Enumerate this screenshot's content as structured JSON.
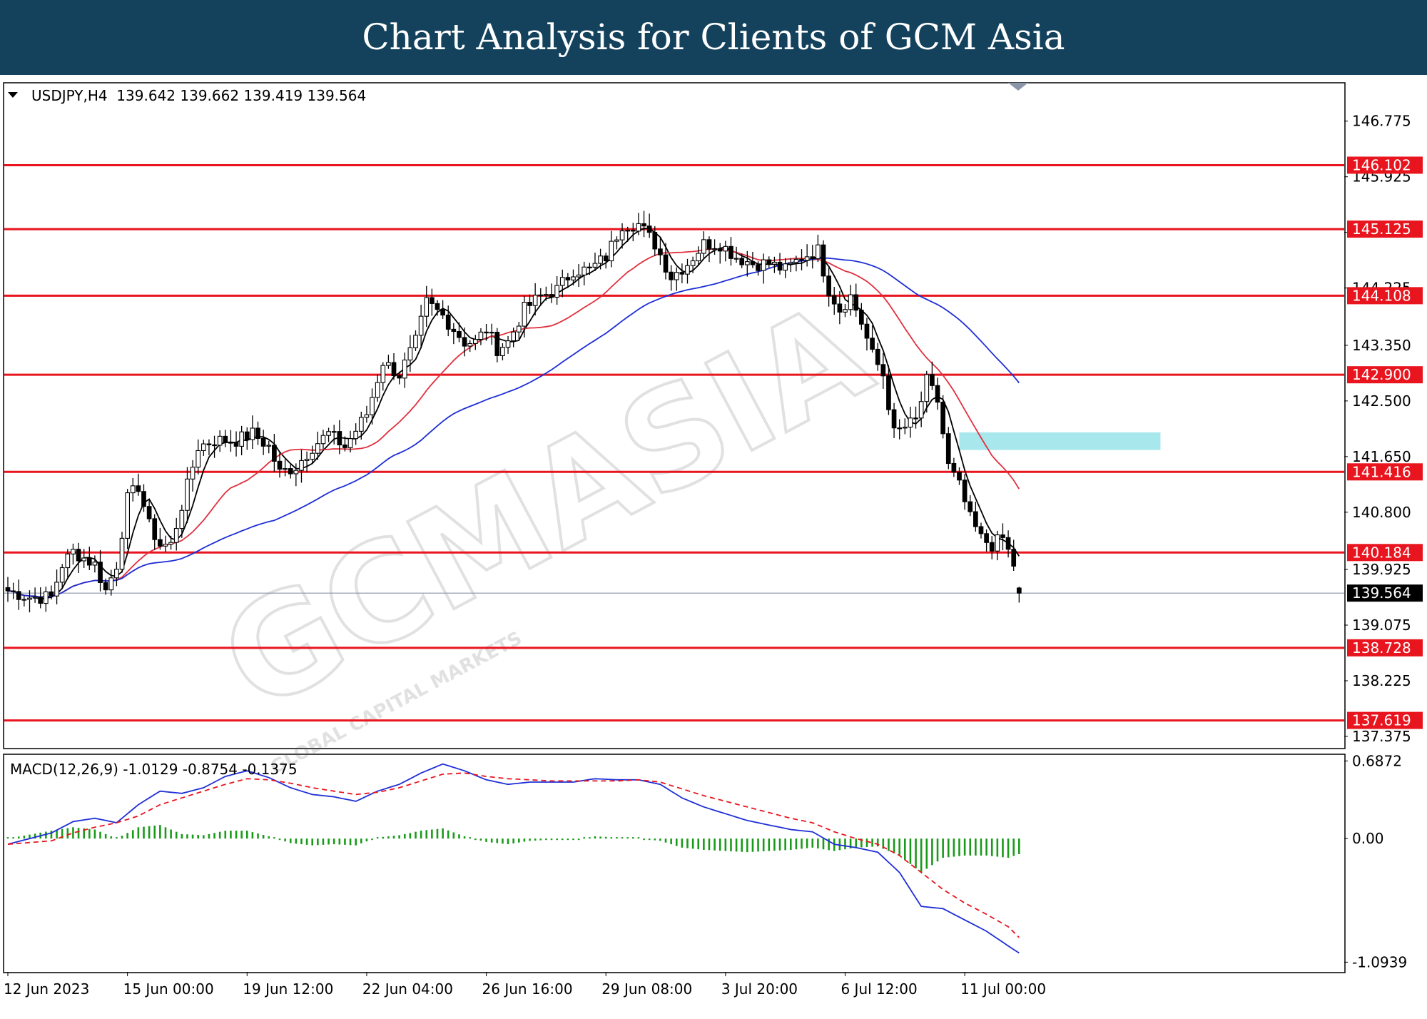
{
  "banner": {
    "title": "Chart Analysis for Clients of GCM Asia"
  },
  "colors": {
    "banner_bg": "#14425d",
    "support_resistance": "#e8141e",
    "ma_fast": "#000000",
    "ma_mid": "#e0303e",
    "ma_slow": "#1e2ed6",
    "macd_line": "#1e2ed6",
    "signal_line": "#e8141e",
    "histogram": "#1a9a1a",
    "zone": "#a8e8ec",
    "price_line": "#8a96a8"
  },
  "watermark": {
    "text": "GCMASIA",
    "subtext": "GLOBAL CAPITAL MARKETS"
  },
  "chart_data": [
    {
      "type": "candlestick",
      "symbol": "USDJPY,H4",
      "header": "USDJPY,H4  139.642 139.662 139.419 139.564",
      "ohlc_last": {
        "open": 139.642,
        "high": 139.662,
        "low": 139.419,
        "close": 139.564
      },
      "current_price": 139.564,
      "current_price_label": "139.564",
      "ylim": [
        137.2,
        147.35
      ],
      "y_ticks": [
        {
          "v": 146.775,
          "t": "146.775"
        },
        {
          "v": 145.925,
          "t": "145.925"
        },
        {
          "v": 145.075,
          "t": "145.075"
        },
        {
          "v": 144.225,
          "t": "144.225"
        },
        {
          "v": 143.35,
          "t": "143.350"
        },
        {
          "v": 142.5,
          "t": "142.500"
        },
        {
          "v": 141.65,
          "t": "141.650"
        },
        {
          "v": 140.8,
          "t": "140.800"
        },
        {
          "v": 139.925,
          "t": "139.925"
        },
        {
          "v": 139.075,
          "t": "139.075"
        },
        {
          "v": 138.225,
          "t": "138.225"
        },
        {
          "v": 137.375,
          "t": "137.375"
        }
      ],
      "levels": [
        {
          "v": 146.102,
          "t": "146.102"
        },
        {
          "v": 145.125,
          "t": "145.125"
        },
        {
          "v": 144.108,
          "t": "144.108"
        },
        {
          "v": 142.9,
          "t": "142.900"
        },
        {
          "v": 141.416,
          "t": "141.416"
        },
        {
          "v": 140.184,
          "t": "140.184"
        },
        {
          "v": 138.728,
          "t": "138.728"
        },
        {
          "v": 137.619,
          "t": "137.619"
        }
      ],
      "zone": {
        "y_low": 141.75,
        "y_high": 142.02,
        "from_bar": 175,
        "to_bar": 212
      },
      "x_labels": [
        {
          "bar": 0,
          "t": "12 Jun 2023"
        },
        {
          "bar": 22,
          "t": "15 Jun 00:00"
        },
        {
          "bar": 44,
          "t": "19 Jun 12:00"
        },
        {
          "bar": 66,
          "t": "22 Jun 04:00"
        },
        {
          "bar": 88,
          "t": "26 Jun 16:00"
        },
        {
          "bar": 110,
          "t": "29 Jun 08:00"
        },
        {
          "bar": 132,
          "t": "3 Jul 20:00"
        },
        {
          "bar": 154,
          "t": "6 Jul 12:00"
        },
        {
          "bar": 176,
          "t": "11 Jul 00:00"
        }
      ],
      "close_anchors": [
        [
          0,
          139.6
        ],
        [
          4,
          139.5
        ],
        [
          8,
          139.5
        ],
        [
          10,
          140.0
        ],
        [
          12,
          140.2
        ],
        [
          16,
          140.0
        ],
        [
          18,
          139.6
        ],
        [
          20,
          140.0
        ],
        [
          22,
          141.0
        ],
        [
          24,
          141.2
        ],
        [
          26,
          140.6
        ],
        [
          28,
          140.3
        ],
        [
          30,
          140.3
        ],
        [
          32,
          140.9
        ],
        [
          35,
          141.8
        ],
        [
          38,
          141.9
        ],
        [
          42,
          141.9
        ],
        [
          45,
          142.0
        ],
        [
          48,
          141.8
        ],
        [
          50,
          141.4
        ],
        [
          53,
          141.5
        ],
        [
          56,
          141.8
        ],
        [
          59,
          142.0
        ],
        [
          62,
          141.8
        ],
        [
          66,
          142.3
        ],
        [
          69,
          143.1
        ],
        [
          72,
          142.9
        ],
        [
          75,
          143.4
        ],
        [
          77,
          144.0
        ],
        [
          80,
          143.8
        ],
        [
          82,
          143.6
        ],
        [
          84,
          143.4
        ],
        [
          86,
          143.4
        ],
        [
          88,
          143.6
        ],
        [
          90,
          143.3
        ],
        [
          92,
          143.4
        ],
        [
          95,
          143.9
        ],
        [
          98,
          144.1
        ],
        [
          101,
          144.2
        ],
        [
          104,
          144.5
        ],
        [
          107,
          144.5
        ],
        [
          110,
          144.7
        ],
        [
          113,
          145.2
        ],
        [
          116,
          145.2
        ],
        [
          119,
          144.9
        ],
        [
          122,
          144.4
        ],
        [
          125,
          144.6
        ],
        [
          128,
          144.9
        ],
        [
          131,
          144.9
        ],
        [
          134,
          144.7
        ],
        [
          137,
          144.6
        ],
        [
          140,
          144.6
        ],
        [
          143,
          144.5
        ],
        [
          146,
          144.7
        ],
        [
          149,
          144.8
        ],
        [
          151,
          144.2
        ],
        [
          153,
          143.9
        ],
        [
          155,
          144.1
        ],
        [
          157,
          143.7
        ],
        [
          159,
          143.2
        ],
        [
          161,
          142.9
        ],
        [
          163,
          142.0
        ],
        [
          165,
          142.1
        ],
        [
          167,
          142.2
        ],
        [
          169,
          142.8
        ],
        [
          171,
          142.5
        ],
        [
          173,
          141.5
        ],
        [
          175,
          141.2
        ],
        [
          177,
          140.7
        ],
        [
          179,
          140.4
        ],
        [
          181,
          140.3
        ],
        [
          183,
          140.4
        ],
        [
          185,
          140.0
        ],
        [
          186,
          139.564
        ]
      ],
      "indicator": {
        "type": "macd",
        "header": "MACD(12,26,9) -1.0129 -0.8754 -0.1375",
        "params": "12,26,9",
        "macd": -1.0129,
        "signal": -0.8754,
        "hist": -0.1375,
        "ylim": [
          -1.18,
          0.74
        ],
        "y_ticks": [
          {
            "v": 0.6872,
            "t": "0.6872"
          },
          {
            "v": 0.0,
            "t": "0.00"
          },
          {
            "v": -1.0939,
            "t": "-1.0939"
          }
        ],
        "macd_anchors": [
          [
            0,
            -0.05
          ],
          [
            8,
            0.05
          ],
          [
            12,
            0.15
          ],
          [
            16,
            0.18
          ],
          [
            20,
            0.14
          ],
          [
            24,
            0.3
          ],
          [
            28,
            0.42
          ],
          [
            32,
            0.4
          ],
          [
            36,
            0.45
          ],
          [
            40,
            0.55
          ],
          [
            44,
            0.6
          ],
          [
            48,
            0.54
          ],
          [
            52,
            0.45
          ],
          [
            56,
            0.39
          ],
          [
            60,
            0.37
          ],
          [
            64,
            0.33
          ],
          [
            68,
            0.42
          ],
          [
            72,
            0.48
          ],
          [
            76,
            0.58
          ],
          [
            80,
            0.66
          ],
          [
            84,
            0.6
          ],
          [
            88,
            0.52
          ],
          [
            92,
            0.48
          ],
          [
            96,
            0.5
          ],
          [
            100,
            0.5
          ],
          [
            104,
            0.5
          ],
          [
            108,
            0.53
          ],
          [
            112,
            0.52
          ],
          [
            116,
            0.52
          ],
          [
            120,
            0.48
          ],
          [
            124,
            0.36
          ],
          [
            128,
            0.28
          ],
          [
            132,
            0.22
          ],
          [
            136,
            0.16
          ],
          [
            140,
            0.12
          ],
          [
            144,
            0.08
          ],
          [
            148,
            0.06
          ],
          [
            152,
            -0.05
          ],
          [
            156,
            -0.08
          ],
          [
            160,
            -0.12
          ],
          [
            164,
            -0.3
          ],
          [
            168,
            -0.6
          ],
          [
            172,
            -0.62
          ],
          [
            176,
            -0.72
          ],
          [
            180,
            -0.82
          ],
          [
            184,
            -0.95
          ],
          [
            186,
            -1.0129
          ]
        ],
        "signal_anchors": [
          [
            0,
            -0.05
          ],
          [
            8,
            -0.02
          ],
          [
            12,
            0.05
          ],
          [
            16,
            0.1
          ],
          [
            20,
            0.14
          ],
          [
            24,
            0.2
          ],
          [
            28,
            0.3
          ],
          [
            32,
            0.36
          ],
          [
            36,
            0.42
          ],
          [
            40,
            0.48
          ],
          [
            44,
            0.53
          ],
          [
            48,
            0.52
          ],
          [
            52,
            0.49
          ],
          [
            56,
            0.45
          ],
          [
            60,
            0.42
          ],
          [
            64,
            0.39
          ],
          [
            68,
            0.41
          ],
          [
            72,
            0.45
          ],
          [
            76,
            0.51
          ],
          [
            80,
            0.57
          ],
          [
            84,
            0.58
          ],
          [
            88,
            0.55
          ],
          [
            92,
            0.53
          ],
          [
            96,
            0.52
          ],
          [
            100,
            0.51
          ],
          [
            104,
            0.51
          ],
          [
            108,
            0.51
          ],
          [
            112,
            0.51
          ],
          [
            116,
            0.52
          ],
          [
            120,
            0.5
          ],
          [
            124,
            0.44
          ],
          [
            128,
            0.38
          ],
          [
            132,
            0.33
          ],
          [
            136,
            0.28
          ],
          [
            140,
            0.23
          ],
          [
            144,
            0.18
          ],
          [
            148,
            0.14
          ],
          [
            152,
            0.06
          ],
          [
            156,
            0.0
          ],
          [
            160,
            -0.05
          ],
          [
            164,
            -0.15
          ],
          [
            168,
            -0.3
          ],
          [
            172,
            -0.45
          ],
          [
            176,
            -0.57
          ],
          [
            180,
            -0.67
          ],
          [
            184,
            -0.78
          ],
          [
            186,
            -0.8754
          ]
        ]
      }
    }
  ]
}
